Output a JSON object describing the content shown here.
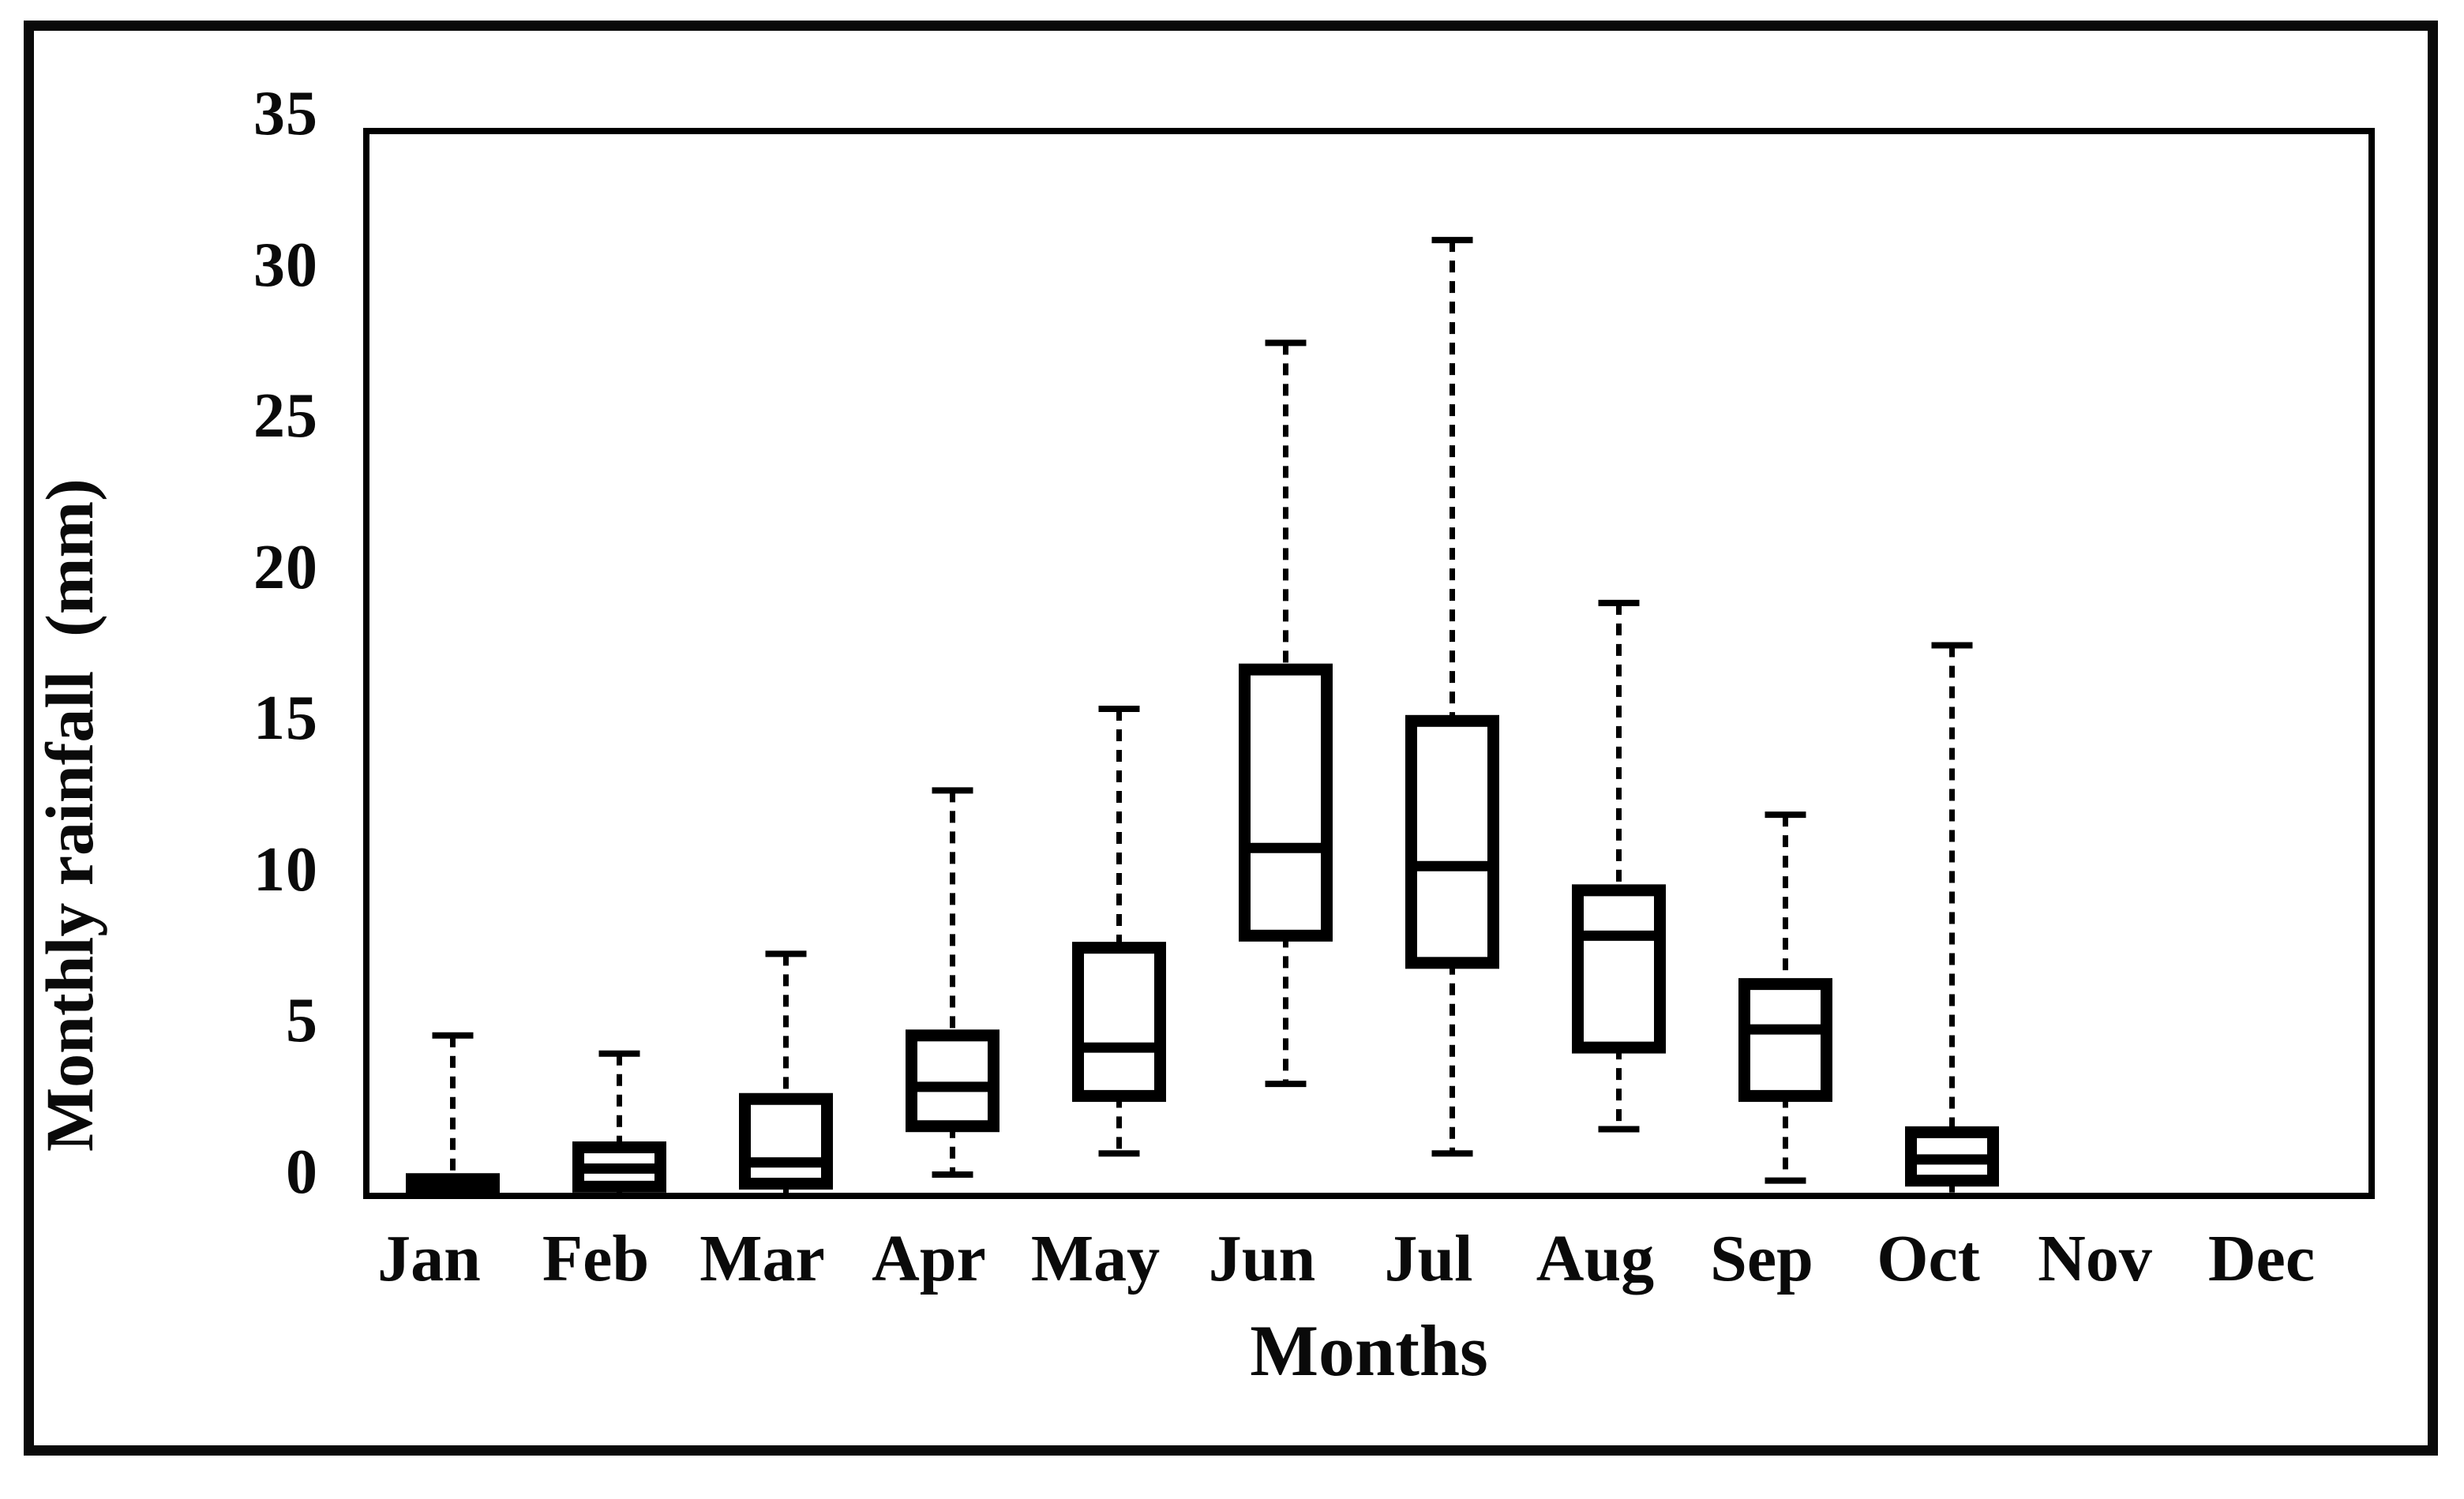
{
  "figure": {
    "y_axis": {
      "title": "Monthly rainfall  (mm)",
      "ticks": [
        0,
        5,
        10,
        15,
        20,
        25,
        30,
        35
      ]
    },
    "x_axis": {
      "title": "Months"
    }
  },
  "chart_data": {
    "type": "boxplot",
    "title": "",
    "xlabel": "Months",
    "ylabel": "Monthly rainfall (mm)",
    "ylim": [
      0,
      35
    ],
    "grid": false,
    "legend": "none",
    "categories": [
      "Jan",
      "Feb",
      "Mar",
      "Apr",
      "May",
      "Jun",
      "Jul",
      "Aug",
      "Sep",
      "Oct",
      "Nov",
      "Dec"
    ],
    "boxes": [
      {
        "label": "Jan",
        "min": 0,
        "q1": 0,
        "median": 0.2,
        "q3": 0.45,
        "max": 5.2,
        "filled": true
      },
      {
        "label": "Feb",
        "min": 0,
        "q1": 0.2,
        "median": 0.8,
        "q3": 1.5,
        "max": 4.6,
        "filled": false
      },
      {
        "label": "Mar",
        "min": 0,
        "q1": 0.3,
        "median": 1.0,
        "q3": 3.1,
        "max": 7.9,
        "filled": false
      },
      {
        "label": "Apr",
        "min": 0.6,
        "q1": 2.2,
        "median": 3.5,
        "q3": 5.2,
        "max": 13.3,
        "filled": false
      },
      {
        "label": "May",
        "min": 1.3,
        "q1": 3.2,
        "median": 4.8,
        "q3": 8.1,
        "max": 16.0,
        "filled": false
      },
      {
        "label": "Jun",
        "min": 3.6,
        "q1": 8.5,
        "median": 11.4,
        "q3": 17.3,
        "max": 28.1,
        "filled": false
      },
      {
        "label": "Jul",
        "min": 1.3,
        "q1": 7.6,
        "median": 10.8,
        "q3": 15.6,
        "max": 31.5,
        "filled": false
      },
      {
        "label": "Aug",
        "min": 2.1,
        "q1": 4.8,
        "median": 8.5,
        "q3": 10.0,
        "max": 19.5,
        "filled": false
      },
      {
        "label": "Sep",
        "min": 0.4,
        "q1": 3.2,
        "median": 5.4,
        "q3": 6.9,
        "max": 12.5,
        "filled": false
      },
      {
        "label": "Oct",
        "min": 0,
        "q1": 0.4,
        "median": 1.1,
        "q3": 2.0,
        "max": 18.1,
        "filled": false
      },
      {
        "label": "Nov",
        "min": null,
        "q1": null,
        "median": null,
        "q3": null,
        "max": null,
        "filled": false
      },
      {
        "label": "Dec",
        "min": null,
        "q1": null,
        "median": null,
        "q3": null,
        "max": null,
        "filled": false
      }
    ]
  }
}
